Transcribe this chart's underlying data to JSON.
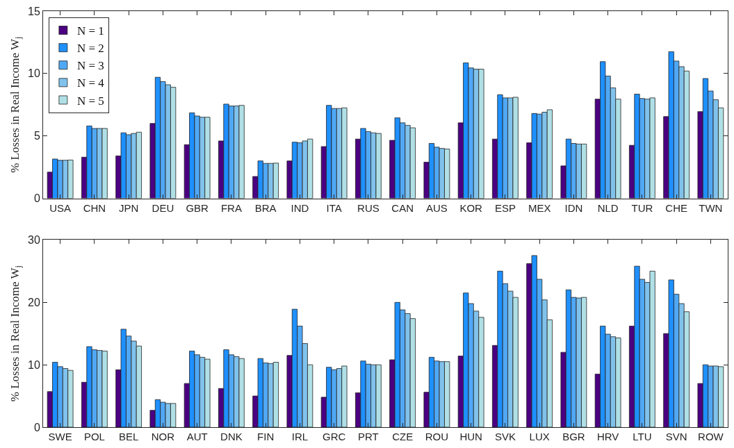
{
  "chart_data": [
    {
      "type": "bar",
      "ylabel": "% Losses in Real Income W$_{j}$",
      "categories": [
        "USA",
        "CHN",
        "JPN",
        "DEU",
        "GBR",
        "FRA",
        "BRA",
        "IND",
        "ITA",
        "RUS",
        "CAN",
        "AUS",
        "KOR",
        "ESP",
        "MEX",
        "IDN",
        "NLD",
        "TUR",
        "CHE",
        "TWN"
      ],
      "ylim": [
        0,
        15
      ],
      "yticks": [
        0,
        5,
        10,
        15
      ],
      "legend": "top left",
      "series": [
        {
          "name": "N = 1",
          "color": "#4b0082",
          "values": [
            2.1,
            3.3,
            3.4,
            6.0,
            4.3,
            4.6,
            1.75,
            3.0,
            4.15,
            4.75,
            4.65,
            2.9,
            6.05,
            4.75,
            4.45,
            2.6,
            7.95,
            4.25,
            6.55,
            6.95
          ]
        },
        {
          "name": "N = 2",
          "color": "#1e90ff",
          "values": [
            3.15,
            5.8,
            5.25,
            9.7,
            6.85,
            7.55,
            3.0,
            4.5,
            7.45,
            5.6,
            6.45,
            4.4,
            10.85,
            8.3,
            6.8,
            4.75,
            10.95,
            8.35,
            11.75,
            9.6
          ]
        },
        {
          "name": "N = 3",
          "color": "#50a8f5",
          "values": [
            3.05,
            5.6,
            5.1,
            9.35,
            6.6,
            7.4,
            2.8,
            4.45,
            7.2,
            5.35,
            6.05,
            4.1,
            10.45,
            8.05,
            6.75,
            4.4,
            9.8,
            8.0,
            11.0,
            8.6
          ]
        },
        {
          "name": "N = 4",
          "color": "#80c2ec",
          "values": [
            3.05,
            5.6,
            5.2,
            9.1,
            6.5,
            7.4,
            2.8,
            4.6,
            7.2,
            5.25,
            5.85,
            4.0,
            10.35,
            8.05,
            6.9,
            4.35,
            8.85,
            7.95,
            10.55,
            7.9
          ]
        },
        {
          "name": "N = 5",
          "color": "#b0e0e6",
          "values": [
            3.07,
            5.6,
            5.3,
            8.9,
            6.5,
            7.45,
            2.82,
            4.75,
            7.25,
            5.2,
            5.65,
            3.95,
            10.35,
            8.1,
            7.1,
            4.35,
            7.95,
            8.05,
            10.2,
            7.25
          ]
        }
      ]
    },
    {
      "type": "bar",
      "ylabel": "% Losses in Real Income W$_{j}$",
      "categories": [
        "SWE",
        "POL",
        "BEL",
        "NOR",
        "AUT",
        "DNK",
        "FIN",
        "IRL",
        "GRC",
        "PRT",
        "CZE",
        "ROU",
        "HUN",
        "SVK",
        "LUX",
        "BGR",
        "HRV",
        "LTU",
        "SVN",
        "ROW"
      ],
      "ylim": [
        0,
        30
      ],
      "yticks": [
        0,
        10,
        20,
        30
      ],
      "series": [
        {
          "color": "#4b0082",
          "values": [
            5.7,
            7.2,
            9.2,
            2.7,
            7.0,
            6.2,
            5.0,
            11.5,
            4.8,
            5.5,
            10.8,
            5.6,
            11.4,
            13.1,
            26.2,
            12.0,
            8.5,
            16.2,
            15.0,
            7.0
          ]
        },
        {
          "color": "#1e90ff",
          "values": [
            10.4,
            12.9,
            15.7,
            4.4,
            12.2,
            12.4,
            11.0,
            18.9,
            9.6,
            10.6,
            20.0,
            11.2,
            21.5,
            25.0,
            27.5,
            22.0,
            16.2,
            25.8,
            23.6,
            10.0
          ]
        },
        {
          "color": "#50a8f5",
          "values": [
            9.7,
            12.4,
            14.6,
            4.0,
            11.6,
            11.6,
            10.3,
            16.2,
            9.2,
            10.1,
            18.8,
            10.6,
            19.8,
            23.0,
            23.7,
            20.8,
            14.9,
            23.7,
            21.3,
            9.8
          ]
        },
        {
          "color": "#80c2ec",
          "values": [
            9.4,
            12.3,
            13.8,
            3.8,
            11.2,
            11.3,
            10.2,
            13.4,
            9.4,
            10.0,
            18.2,
            10.5,
            18.6,
            21.8,
            20.4,
            20.7,
            14.5,
            23.2,
            19.8,
            9.8
          ]
        },
        {
          "color": "#b0e0e6",
          "values": [
            9.1,
            12.2,
            13.0,
            3.8,
            10.9,
            11.0,
            10.4,
            10.0,
            9.8,
            10.0,
            17.4,
            10.5,
            17.6,
            20.8,
            17.2,
            20.8,
            14.3,
            25.0,
            18.5,
            9.7
          ]
        }
      ]
    }
  ]
}
